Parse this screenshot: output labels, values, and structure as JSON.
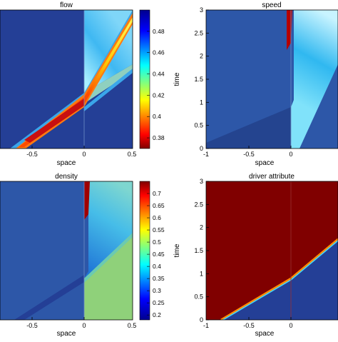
{
  "colors": {
    "jet_stops": [
      "#00008f",
      "#0000ff",
      "#00ffff",
      "#ffff00",
      "#ff0000",
      "#800000"
    ],
    "panel_background": "#2d57a8",
    "divider": "#6d8fc6"
  },
  "chart_data": [
    {
      "type": "heatmap",
      "title": "flow",
      "xlabel": "space",
      "ylabel": "",
      "xlim": [
        -1,
        0.5
      ],
      "ylim": [
        0,
        3
      ],
      "xticks": [
        "-0.5",
        "0",
        "0.5"
      ],
      "yticks": [],
      "colorbar": {
        "range": [
          0.37,
          0.5
        ],
        "ticks": [
          "0.48",
          "0.46",
          "0.44",
          "0.42",
          "0.4",
          "0.38"
        ],
        "tick_values": [
          0.48,
          0.46,
          0.44,
          0.42,
          0.4,
          0.38
        ]
      }
    },
    {
      "type": "heatmap",
      "title": "speed",
      "xlabel": "space",
      "ylabel": "time",
      "xlim": [
        -1,
        0.5
      ],
      "ylim": [
        0,
        3
      ],
      "xticks": [
        "-1",
        "-0.5",
        "0"
      ],
      "yticks": [
        "0",
        "0.5",
        "1",
        "1.5",
        "2",
        "2.5",
        "3"
      ]
    },
    {
      "type": "heatmap",
      "title": "density",
      "xlabel": "space",
      "ylabel": "",
      "xlim": [
        -1,
        0.5
      ],
      "ylim": [
        0,
        3
      ],
      "xticks": [
        "-0.5",
        "0",
        "0.5"
      ],
      "yticks": [],
      "colorbar": {
        "range": [
          0.18,
          0.75
        ],
        "ticks": [
          "0.7",
          "0.65",
          "0.6",
          "0.55",
          "0.5",
          "0.45",
          "0.4",
          "0.35",
          "0.3",
          "0.25",
          "0.2"
        ],
        "tick_values": [
          0.7,
          0.65,
          0.6,
          0.55,
          0.5,
          0.45,
          0.4,
          0.35,
          0.3,
          0.25,
          0.2
        ]
      }
    },
    {
      "type": "heatmap",
      "title": "driver attribute",
      "xlabel": "space",
      "ylabel": "time",
      "xlim": [
        -1,
        0.5
      ],
      "ylim": [
        0,
        3
      ],
      "xticks": [
        "-1",
        "-0.5",
        "0"
      ],
      "yticks": [
        "0",
        "0.5",
        "1",
        "1.5",
        "2",
        "2.5",
        "3"
      ]
    }
  ]
}
